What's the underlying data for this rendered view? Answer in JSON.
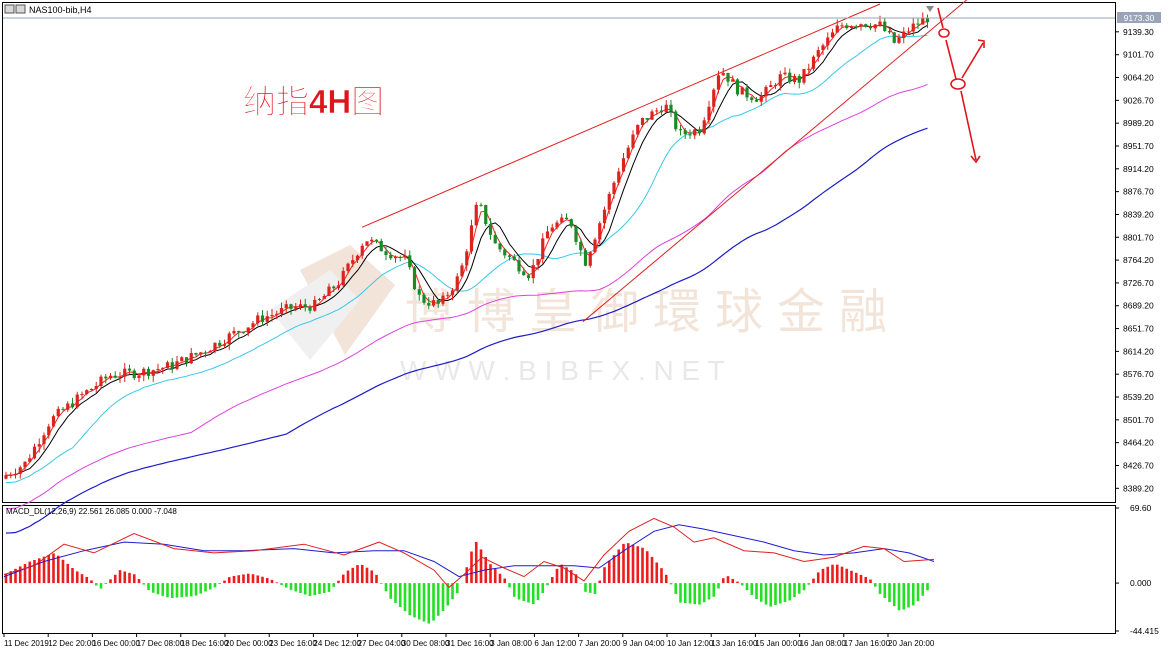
{
  "header": {
    "symbol_label": "NAS100-bib,H4",
    "last_price_tag": "9173.30"
  },
  "annotation": {
    "title": "纳指4H图"
  },
  "watermark": {
    "cn": "博博皇御環球金融",
    "en": "W W W . B I B F X . N E T"
  },
  "colors": {
    "bull": "#d9251d",
    "bear": "#1a8a26",
    "ma_fast": "#000000",
    "ma_slow": "#ff2020",
    "ema_cyan": "#38c8e8",
    "ma_magenta": "#e040e0",
    "ma_blue": "#1c1cc8",
    "channel": "#e02020",
    "macd_pos": "#ee1c1c",
    "macd_neg": "#22e022",
    "signal_blue": "#1c1cd0",
    "signal_red": "#e02020",
    "grid_axis": "#000000"
  },
  "main_axis": {
    "price_labels": [
      "9173.30",
      "9139.30",
      "9101.70",
      "9064.20",
      "9026.70",
      "8989.20",
      "8951.70",
      "8914.20",
      "8876.70",
      "8839.20",
      "8801.70",
      "8764.20",
      "8726.70",
      "8689.20",
      "8651.70",
      "8614.20",
      "8576.70",
      "8539.20",
      "8501.70",
      "8464.20",
      "8426.70",
      "8389.20"
    ]
  },
  "macd_panel": {
    "label": "MACD_DL(12,26,9) 22.561 26.085 0.000 -7.048",
    "axis_labels": [
      "69.60",
      "0.000",
      "-44.415"
    ]
  },
  "time_axis": {
    "labels": [
      "11 Dec 2019",
      "12 Dec 20:00",
      "16 Dec 00:00",
      "17 Dec 08:00",
      "18 Dec 16:00",
      "20 Dec 00:00",
      "23 Dec 16:00",
      "24 Dec 12:00",
      "27 Dec 04:00",
      "30 Dec 08:00",
      "31 Dec 16:00",
      "3 Jan 08:00",
      "6 Jan 12:00",
      "7 Jan 20:00",
      "9 Jan 04:00",
      "10 Jan 12:00",
      "13 Jan 16:00",
      "15 Jan 00:00",
      "16 Jan 08:00",
      "17 Jan 16:00",
      "20 Jan 20:00"
    ]
  },
  "chart_data": {
    "type": "candlestick",
    "symbol": "NAS100-bib",
    "timeframe": "H4",
    "y_range": [
      8370,
      9185
    ],
    "start_price": 8405,
    "price_path": [
      [
        0,
        8405
      ],
      [
        25,
        8430
      ],
      [
        50,
        8500
      ],
      [
        80,
        8540
      ],
      [
        110,
        8575
      ],
      [
        140,
        8580
      ],
      [
        170,
        8590
      ],
      [
        200,
        8612
      ],
      [
        230,
        8640
      ],
      [
        260,
        8668
      ],
      [
        290,
        8685
      ],
      [
        315,
        8690
      ],
      [
        340,
        8730
      ],
      [
        365,
        8800
      ],
      [
        385,
        8780
      ],
      [
        405,
        8765
      ],
      [
        420,
        8700
      ],
      [
        440,
        8690
      ],
      [
        460,
        8740
      ],
      [
        478,
        8860
      ],
      [
        495,
        8790
      ],
      [
        515,
        8760
      ],
      [
        530,
        8740
      ],
      [
        550,
        8820
      ],
      [
        570,
        8830
      ],
      [
        585,
        8760
      ],
      [
        605,
        8850
      ],
      [
        620,
        8920
      ],
      [
        640,
        8990
      ],
      [
        665,
        9020
      ],
      [
        680,
        8970
      ],
      [
        700,
        8980
      ],
      [
        720,
        9080
      ],
      [
        740,
        9040
      ],
      [
        760,
        9030
      ],
      [
        780,
        9065
      ],
      [
        800,
        9060
      ],
      [
        820,
        9110
      ],
      [
        840,
        9150
      ],
      [
        860,
        9155
      ],
      [
        880,
        9150
      ],
      [
        895,
        9120
      ],
      [
        910,
        9145
      ],
      [
        930,
        9165
      ]
    ],
    "channel_lines": [
      {
        "from": [
          362,
          8818
        ],
        "to": [
          880,
          9185
        ]
      },
      {
        "from": [
          583,
          8663
        ],
        "to": [
          980,
          9210
        ]
      }
    ],
    "forecast_arrows": "down to lower channel line, rebound, then drop",
    "macd": {
      "params": "12,26,9",
      "macd": 22.561,
      "signal": 26.085,
      "zero": 0.0,
      "value_last": -7.048,
      "y_range": [
        -44.415,
        69.6
      ],
      "histogram_path": [
        [
          0,
          6
        ],
        [
          30,
          20
        ],
        [
          55,
          28
        ],
        [
          75,
          12
        ],
        [
          90,
          4
        ],
        [
          100,
          -6
        ],
        [
          120,
          12
        ],
        [
          135,
          8
        ],
        [
          150,
          -8
        ],
        [
          170,
          -14
        ],
        [
          195,
          -12
        ],
        [
          215,
          -4
        ],
        [
          230,
          6
        ],
        [
          250,
          9
        ],
        [
          270,
          4
        ],
        [
          290,
          -6
        ],
        [
          310,
          -12
        ],
        [
          330,
          -8
        ],
        [
          345,
          10
        ],
        [
          360,
          18
        ],
        [
          375,
          10
        ],
        [
          390,
          -14
        ],
        [
          410,
          -30
        ],
        [
          430,
          -38
        ],
        [
          445,
          -24
        ],
        [
          460,
          -6
        ],
        [
          475,
          40
        ],
        [
          490,
          18
        ],
        [
          505,
          4
        ],
        [
          515,
          -14
        ],
        [
          535,
          -20
        ],
        [
          545,
          -6
        ],
        [
          560,
          18
        ],
        [
          575,
          10
        ],
        [
          585,
          -8
        ],
        [
          595,
          -10
        ],
        [
          605,
          16
        ],
        [
          625,
          38
        ],
        [
          645,
          32
        ],
        [
          665,
          10
        ],
        [
          680,
          -18
        ],
        [
          700,
          -20
        ],
        [
          715,
          -12
        ],
        [
          725,
          8
        ],
        [
          740,
          0
        ],
        [
          755,
          -14
        ],
        [
          770,
          -22
        ],
        [
          790,
          -16
        ],
        [
          805,
          -6
        ],
        [
          820,
          12
        ],
        [
          835,
          18
        ],
        [
          855,
          10
        ],
        [
          870,
          4
        ],
        [
          880,
          -10
        ],
        [
          900,
          -26
        ],
        [
          915,
          -20
        ],
        [
          930,
          -4
        ]
      ],
      "macd_path": [
        [
          0,
          8
        ],
        [
          30,
          16
        ],
        [
          60,
          36
        ],
        [
          90,
          28
        ],
        [
          130,
          46
        ],
        [
          170,
          32
        ],
        [
          210,
          28
        ],
        [
          250,
          30
        ],
        [
          300,
          36
        ],
        [
          340,
          26
        ],
        [
          375,
          38
        ],
        [
          400,
          28
        ],
        [
          430,
          12
        ],
        [
          445,
          -4
        ],
        [
          460,
          8
        ],
        [
          478,
          24
        ],
        [
          500,
          14
        ],
        [
          520,
          6
        ],
        [
          540,
          20
        ],
        [
          560,
          14
        ],
        [
          580,
          2
        ],
        [
          600,
          26
        ],
        [
          625,
          48
        ],
        [
          650,
          60
        ],
        [
          670,
          52
        ],
        [
          690,
          38
        ],
        [
          710,
          42
        ],
        [
          740,
          30
        ],
        [
          770,
          28
        ],
        [
          800,
          20
        ],
        [
          830,
          24
        ],
        [
          860,
          34
        ],
        [
          880,
          32
        ],
        [
          900,
          20
        ],
        [
          930,
          22
        ]
      ],
      "signal_path": [
        [
          0,
          6
        ],
        [
          40,
          20
        ],
        [
          80,
          30
        ],
        [
          120,
          38
        ],
        [
          160,
          36
        ],
        [
          200,
          30
        ],
        [
          240,
          30
        ],
        [
          290,
          32
        ],
        [
          330,
          28
        ],
        [
          370,
          30
        ],
        [
          400,
          30
        ],
        [
          430,
          20
        ],
        [
          455,
          6
        ],
        [
          480,
          12
        ],
        [
          510,
          16
        ],
        [
          540,
          16
        ],
        [
          570,
          16
        ],
        [
          595,
          14
        ],
        [
          620,
          30
        ],
        [
          650,
          48
        ],
        [
          675,
          54
        ],
        [
          700,
          50
        ],
        [
          730,
          44
        ],
        [
          760,
          38
        ],
        [
          790,
          30
        ],
        [
          820,
          26
        ],
        [
          850,
          28
        ],
        [
          880,
          32
        ],
        [
          905,
          28
        ],
        [
          930,
          20
        ]
      ]
    }
  }
}
